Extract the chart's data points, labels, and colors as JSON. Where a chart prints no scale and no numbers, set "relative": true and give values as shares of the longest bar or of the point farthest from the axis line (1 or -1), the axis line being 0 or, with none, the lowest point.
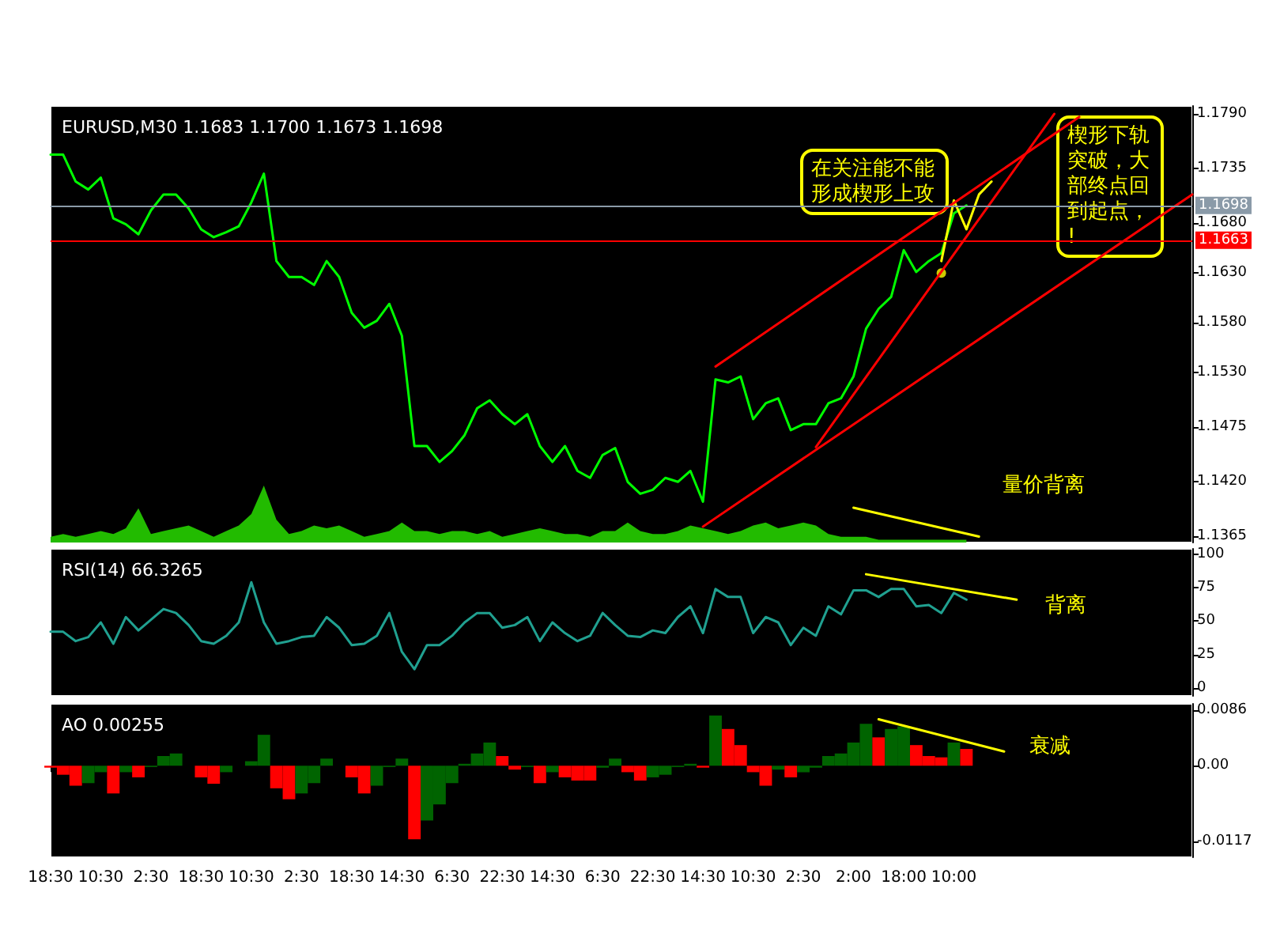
{
  "chart_data": [
    {
      "type": "line",
      "title": "EURUSD,M30 1.1683 1.1700 1.1673 1.1698",
      "tick_labels": "y",
      "categories": [
        "18:30",
        null,
        null,
        null,
        "10:30",
        null,
        null,
        null,
        "2:30",
        null,
        null,
        null,
        "18:30",
        null,
        null,
        null,
        "10:30",
        null,
        null,
        null,
        "2:30",
        null,
        null,
        null,
        "18:30",
        null,
        null,
        null,
        "14:30",
        null,
        null,
        null,
        "6:30",
        null,
        null,
        null,
        "22:30",
        null,
        null,
        null,
        "14:30",
        null,
        null,
        null,
        "6:30",
        null,
        null,
        null,
        "22:30",
        null,
        null,
        null,
        "14:30",
        null,
        null,
        null,
        "10:30",
        null,
        null,
        null,
        "2:30",
        null,
        null,
        null,
        "2:00",
        null,
        null,
        null,
        "18:00",
        null,
        null,
        null,
        "10:00",
        null,
        null,
        null,
        null,
        null,
        null,
        null,
        null,
        null,
        null,
        null,
        null,
        null,
        null,
        null,
        null,
        null,
        null,
        null
      ],
      "ylim": [
        1.1359,
        1.1798
      ],
      "yticks": [
        {
          "value": 1.179,
          "label": "1.1790"
        },
        1.1735,
        {
          "value": 1.168,
          "label": "1.1680"
        },
        {
          "value": 1.163,
          "label": "1.1630"
        },
        {
          "value": 1.158,
          "label": "1.1580"
        },
        {
          "value": 1.153,
          "label": "1.1530"
        },
        1.1475,
        {
          "value": 1.142,
          "label": "1.1420"
        },
        1.1365
      ],
      "ref_lines": [
        {
          "axis": "y",
          "value": 1.1698,
          "label": "1.1698",
          "color": "#8a9aa8"
        },
        {
          "axis": "y",
          "value": 1.1663,
          "label": "1.1663",
          "color": "#ff0000"
        }
      ],
      "annotations": [
        "在关注能不能形成楔形上攻",
        "楔形下轨突破，大部终点回到起点，!",
        "量价背离"
      ],
      "series": [
        {
          "color": "#00ff00",
          "values": [
            1.1749,
            1.1749,
            1.1722,
            1.1714,
            1.1726,
            1.1685,
            1.1679,
            1.1669,
            1.1693,
            1.1709,
            1.1709,
            1.1695,
            1.1674,
            1.1666,
            1.1671,
            1.1677,
            1.1701,
            1.173,
            1.1642,
            1.1626,
            1.1626,
            1.1618,
            1.1642,
            1.1626,
            1.159,
            1.1575,
            1.1582,
            1.1599,
            1.1567,
            1.1456,
            1.1456,
            1.144,
            1.1451,
            1.1467,
            1.1494,
            1.1502,
            1.1488,
            1.1478,
            1.1488,
            1.1456,
            1.144,
            1.1456,
            1.1431,
            1.1424,
            1.1447,
            1.1454,
            1.142,
            1.1408,
            1.1412,
            1.1424,
            1.142,
            1.1431,
            1.14,
            1.1523,
            1.152,
            1.1526,
            1.1483,
            1.1499,
            1.1504,
            1.1472,
            1.1478,
            1.1478,
            1.1499,
            1.1504,
            1.1526,
            1.1574,
            1.1594,
            1.1606,
            1.1653,
            1.1631,
            1.1642,
            1.165,
            1.169,
            1.1698,
            null,
            null,
            null,
            null,
            null,
            null,
            null,
            null,
            null,
            null,
            null,
            null,
            null,
            null,
            null,
            null,
            null,
            null
          ]
        },
        {
          "color": "#ffff00",
          "values": [
            null,
            null,
            null,
            null,
            null,
            null,
            null,
            null,
            null,
            null,
            null,
            null,
            null,
            null,
            null,
            null,
            null,
            null,
            null,
            null,
            null,
            null,
            null,
            null,
            null,
            null,
            null,
            null,
            null,
            null,
            null,
            null,
            null,
            null,
            null,
            null,
            null,
            null,
            null,
            null,
            null,
            null,
            null,
            null,
            null,
            null,
            null,
            null,
            null,
            null,
            null,
            null,
            null,
            null,
            null,
            null,
            null,
            null,
            null,
            null,
            null,
            null,
            null,
            null,
            null,
            null,
            null,
            null,
            null,
            null,
            null,
            1.1642,
            1.1703,
            1.1674,
            1.1709,
            1.1722,
            null,
            null,
            null,
            null,
            null,
            null,
            null,
            null,
            null,
            null,
            null,
            null,
            null,
            null,
            null,
            null
          ]
        },
        {
          "color": "#ff0000",
          "values": [
            null,
            null,
            null,
            null,
            null,
            null,
            null,
            null,
            null,
            null,
            null,
            null,
            null,
            null,
            null,
            null,
            null,
            null,
            null,
            null,
            null,
            null,
            null,
            null,
            null,
            null,
            null,
            null,
            null,
            null,
            null,
            null,
            null,
            null,
            null,
            null,
            null,
            null,
            null,
            null,
            null,
            null,
            null,
            null,
            null,
            null,
            null,
            null,
            null,
            null,
            null,
            null,
            null,
            1.1536,
            null,
            null,
            null,
            null,
            null,
            null,
            null,
            null,
            null,
            null,
            null,
            null,
            null,
            null,
            null,
            null,
            null,
            null,
            null,
            null,
            null,
            null,
            null,
            null,
            null,
            null,
            null,
            null,
            1.1787,
            null,
            null,
            null,
            null,
            null,
            null,
            null,
            null,
            null
          ]
        },
        {
          "color": "#ff0000",
          "values": [
            null,
            null,
            null,
            null,
            null,
            null,
            null,
            null,
            null,
            null,
            null,
            null,
            null,
            null,
            null,
            null,
            null,
            null,
            null,
            null,
            null,
            null,
            null,
            null,
            null,
            null,
            null,
            null,
            null,
            null,
            null,
            null,
            null,
            null,
            null,
            null,
            null,
            null,
            null,
            null,
            null,
            null,
            null,
            null,
            null,
            null,
            null,
            null,
            null,
            null,
            null,
            null,
            null,
            null,
            null,
            null,
            null,
            null,
            null,
            null,
            null,
            1.1455,
            null,
            null,
            null,
            null,
            null,
            null,
            null,
            null,
            null,
            null,
            null,
            null,
            null,
            null,
            null,
            null,
            null,
            null,
            1.179,
            null,
            null,
            null,
            null,
            null,
            null,
            null,
            null,
            null,
            null,
            null
          ]
        },
        {
          "color": "#ff0000",
          "values": [
            null,
            null,
            null,
            null,
            null,
            null,
            null,
            null,
            null,
            null,
            null,
            null,
            null,
            null,
            null,
            null,
            null,
            null,
            null,
            null,
            null,
            null,
            null,
            null,
            null,
            null,
            null,
            null,
            null,
            null,
            null,
            null,
            null,
            null,
            null,
            null,
            null,
            null,
            null,
            null,
            null,
            null,
            null,
            null,
            null,
            null,
            null,
            null,
            null,
            null,
            null,
            null,
            1.1375,
            null,
            null,
            null,
            null,
            null,
            null,
            null,
            null,
            null,
            null,
            null,
            null,
            null,
            null,
            null,
            null,
            null,
            null,
            null,
            null,
            null,
            null,
            null,
            null,
            null,
            null,
            null,
            null,
            null,
            null,
            null,
            null,
            null,
            null,
            null,
            null,
            null,
            null,
            1.1709
          ]
        },
        {
          "color": "#ffff00",
          "values": [
            null,
            null,
            null,
            null,
            null,
            null,
            null,
            null,
            null,
            null,
            null,
            null,
            null,
            null,
            null,
            null,
            null,
            null,
            null,
            null,
            null,
            null,
            null,
            null,
            null,
            null,
            null,
            null,
            null,
            null,
            null,
            null,
            null,
            null,
            null,
            null,
            null,
            null,
            null,
            null,
            null,
            null,
            null,
            null,
            null,
            null,
            null,
            null,
            null,
            null,
            null,
            null,
            null,
            null,
            null,
            null,
            null,
            null,
            null,
            null,
            null,
            null,
            null,
            null,
            1.1394,
            null,
            null,
            null,
            null,
            null,
            null,
            null,
            null,
            null,
            1.1365,
            null,
            null,
            null,
            null,
            null,
            null,
            null,
            null,
            null,
            null,
            null,
            null,
            null,
            null,
            null,
            null,
            null
          ]
        },
        {
          "type": "scatter",
          "marker": "circle",
          "color": "#ffff00",
          "values": [
            null,
            null,
            null,
            null,
            null,
            null,
            null,
            null,
            null,
            null,
            null,
            null,
            null,
            null,
            null,
            null,
            null,
            null,
            null,
            null,
            null,
            null,
            null,
            null,
            null,
            null,
            null,
            null,
            null,
            null,
            null,
            null,
            null,
            null,
            null,
            null,
            null,
            null,
            null,
            null,
            null,
            null,
            null,
            null,
            null,
            null,
            null,
            null,
            null,
            null,
            null,
            null,
            null,
            null,
            null,
            null,
            null,
            null,
            null,
            null,
            null,
            null,
            null,
            null,
            null,
            null,
            null,
            null,
            null,
            null,
            null,
            1.163,
            null,
            null,
            null,
            null,
            null,
            null,
            null,
            null,
            null,
            null,
            null,
            null,
            null,
            null,
            null,
            null,
            null,
            null,
            null,
            null
          ]
        }
      ]
    },
    {
      "type": "area",
      "relative": true,
      "tick_labels": false,
      "color": "#22bb00",
      "categories": [
        "18:30",
        null,
        null,
        null,
        "10:30",
        null,
        null,
        null,
        "2:30",
        null,
        null,
        null,
        "18:30",
        null,
        null,
        null,
        "10:30",
        null,
        null,
        null,
        "2:30",
        null,
        null,
        null,
        "18:30",
        null,
        null,
        null,
        "14:30",
        null,
        null,
        null,
        "6:30",
        null,
        null,
        null,
        "22:30",
        null,
        null,
        null,
        "14:30",
        null,
        null,
        null,
        "6:30",
        null,
        null,
        null,
        "22:30",
        null,
        null,
        null,
        "14:30",
        null,
        null,
        null,
        "10:30",
        null,
        null,
        null,
        "2:30",
        null,
        null,
        null,
        "2:00",
        null,
        null,
        null,
        "18:00",
        null,
        null,
        null,
        "10:00",
        null,
        null,
        null,
        null,
        null,
        null,
        null,
        null,
        null,
        null,
        null,
        null,
        null,
        null,
        null,
        null,
        null,
        null,
        null
      ],
      "values": [
        0.1,
        0.15,
        0.1,
        0.15,
        0.2,
        0.15,
        0.25,
        0.6,
        0.15,
        0.2,
        0.25,
        0.3,
        0.2,
        0.1,
        0.2,
        0.3,
        0.5,
        1,
        0.4,
        0.15,
        0.2,
        0.3,
        0.25,
        0.3,
        0.2,
        0.1,
        0.15,
        0.2,
        0.35,
        0.2,
        0.2,
        0.15,
        0.2,
        0.2,
        0.15,
        0.2,
        0.1,
        0.15,
        0.2,
        0.25,
        0.2,
        0.15,
        0.15,
        0.1,
        0.2,
        0.2,
        0.35,
        0.2,
        0.15,
        0.15,
        0.2,
        0.3,
        0.25,
        0.2,
        0.15,
        0.2,
        0.3,
        0.35,
        0.25,
        0.3,
        0.35,
        0.3,
        0.15,
        0.1,
        0.1,
        0.1,
        0.05,
        0.05,
        0.05,
        0.05,
        0.05,
        0.05,
        0.05,
        0.05,
        null,
        null,
        null,
        null,
        null,
        null,
        null,
        null,
        null,
        null,
        null,
        null,
        null,
        null,
        null,
        null,
        null,
        null
      ]
    },
    {
      "type": "line",
      "title": "RSI(14) 66.3265",
      "tick_labels": "y",
      "categories": [
        "18:30",
        null,
        null,
        null,
        "10:30",
        null,
        null,
        null,
        "2:30",
        null,
        null,
        null,
        "18:30",
        null,
        null,
        null,
        "10:30",
        null,
        null,
        null,
        "2:30",
        null,
        null,
        null,
        "18:30",
        null,
        null,
        null,
        "14:30",
        null,
        null,
        null,
        "6:30",
        null,
        null,
        null,
        "22:30",
        null,
        null,
        null,
        "14:30",
        null,
        null,
        null,
        "6:30",
        null,
        null,
        null,
        "22:30",
        null,
        null,
        null,
        "14:30",
        null,
        null,
        null,
        "10:30",
        null,
        null,
        null,
        "2:30",
        null,
        null,
        null,
        "2:00",
        null,
        null,
        null,
        "18:00",
        null,
        null,
        null,
        "10:00",
        null,
        null,
        null,
        null,
        null,
        null,
        null,
        null,
        null,
        null,
        null,
        null,
        null,
        null,
        null,
        null,
        null,
        null,
        null
      ],
      "ylim": [
        -6,
        104
      ],
      "yticks": [
        0,
        25,
        50,
        75,
        100
      ],
      "annotations": [
        "背离"
      ],
      "series": [
        {
          "color": "#20a090",
          "values": [
            42,
            42,
            35,
            38,
            49,
            33,
            53,
            43,
            51,
            59,
            56,
            47,
            35,
            33,
            39,
            49,
            79,
            49,
            33,
            35,
            38,
            39,
            53,
            45,
            32,
            33,
            39,
            56,
            27,
            14,
            32,
            32,
            39,
            49,
            56,
            56,
            45,
            47,
            53,
            35,
            49,
            41,
            35,
            39,
            56,
            47,
            39,
            38,
            43,
            41,
            53,
            61,
            41,
            74,
            68,
            68,
            41,
            53,
            49,
            32,
            45,
            39,
            61,
            55,
            73,
            73,
            68,
            74,
            74,
            61,
            62,
            56,
            71,
            66,
            null,
            null,
            null,
            null,
            null,
            null,
            null,
            null,
            null,
            null,
            null,
            null,
            null,
            null,
            null,
            null,
            null,
            null
          ]
        },
        {
          "color": "#ffff00",
          "values": [
            null,
            null,
            null,
            null,
            null,
            null,
            null,
            null,
            null,
            null,
            null,
            null,
            null,
            null,
            null,
            null,
            null,
            null,
            null,
            null,
            null,
            null,
            null,
            null,
            null,
            null,
            null,
            null,
            null,
            null,
            null,
            null,
            null,
            null,
            null,
            null,
            null,
            null,
            null,
            null,
            null,
            null,
            null,
            null,
            null,
            null,
            null,
            null,
            null,
            null,
            null,
            null,
            null,
            null,
            null,
            null,
            null,
            null,
            null,
            null,
            null,
            null,
            null,
            null,
            null,
            85,
            null,
            null,
            null,
            null,
            null,
            null,
            null,
            null,
            null,
            null,
            null,
            66,
            null,
            null,
            null,
            null,
            null,
            null,
            null,
            null,
            null,
            null,
            null,
            null,
            null,
            null
          ]
        }
      ]
    },
    {
      "type": "bar",
      "title": "AO 0.00255",
      "categories": [
        "18:30",
        null,
        null,
        null,
        "10:30",
        null,
        null,
        null,
        "2:30",
        null,
        null,
        null,
        "18:30",
        null,
        null,
        null,
        "10:30",
        null,
        null,
        null,
        "2:30",
        null,
        null,
        null,
        "18:30",
        null,
        null,
        null,
        "14:30",
        null,
        null,
        null,
        "6:30",
        null,
        null,
        null,
        "22:30",
        null,
        null,
        null,
        "14:30",
        null,
        null,
        null,
        "6:30",
        null,
        null,
        null,
        "22:30",
        null,
        null,
        null,
        "14:30",
        null,
        null,
        null,
        "10:30",
        null,
        null,
        null,
        "2:30",
        null,
        null,
        null,
        "2:00",
        null,
        null,
        null,
        "18:00",
        null,
        null,
        null,
        "10:00",
        null,
        null,
        null,
        null,
        null,
        null,
        null,
        null,
        null,
        null,
        null,
        null,
        null,
        null,
        null,
        null,
        null,
        null,
        null
      ],
      "ylim": [
        -0.0142,
        0.0096
      ],
      "yticks": [
        0.0086,
        {
          "value": 0,
          "label": "0.00"
        },
        -0.0117
      ],
      "annotations": [
        "衰减"
      ],
      "series": [
        {
          "values": [
            -0.0003,
            -0.0014,
            -0.0031,
            -0.0027,
            -0.001,
            -0.0043,
            -0.001,
            -0.0018,
            -0.0002,
            0.0015,
            0.0019,
            0,
            -0.0018,
            -0.0028,
            -0.001,
            0,
            0.0007,
            0.0048,
            -0.0035,
            -0.0052,
            -0.0043,
            -0.0027,
            0.0011,
            0,
            -0.0018,
            -0.0043,
            -0.0031,
            -0.0002,
            0.0011,
            -0.0114,
            -0.0085,
            -0.006,
            -0.0027,
            0.0003,
            0.0019,
            0.0036,
            0.0015,
            -0.0006,
            -0.0002,
            -0.0027,
            -0.001,
            -0.0018,
            -0.0023,
            -0.0023,
            -0.0003,
            0.0011,
            -0.001,
            -0.0023,
            -0.0018,
            -0.0014,
            -0.0002,
            0.0003,
            -0.0003,
            0.0078,
            0.0057,
            0.0032,
            -0.001,
            -0.0031,
            -0.0006,
            -0.0018,
            -0.001,
            -0.0003,
            0.0015,
            0.0019,
            0.0036,
            0.0065,
            0.0044,
            0.0057,
            0.0061,
            0.0032,
            0.0015,
            0.0013,
            0.0036,
            0.0026,
            null,
            null,
            null,
            null,
            null,
            null,
            null,
            null,
            null,
            null,
            null,
            null,
            null,
            null,
            null,
            null,
            null,
            null
          ],
          "colors": [
            "#ff0000",
            "#ff0000",
            "#ff0000",
            "#006400",
            "#006400",
            "#ff0000",
            "#006400",
            "#ff0000",
            "#006400",
            "#006400",
            "#006400",
            "#ff0000",
            "#ff0000",
            "#ff0000",
            "#006400",
            "#006400",
            "#006400",
            "#006400",
            "#ff0000",
            "#ff0000",
            "#006400",
            "#006400",
            "#006400",
            "#ff0000",
            "#ff0000",
            "#ff0000",
            "#006400",
            "#006400",
            "#006400",
            "#ff0000",
            "#006400",
            "#006400",
            "#006400",
            "#006400",
            "#006400",
            "#006400",
            "#ff0000",
            "#ff0000",
            "#006400",
            "#ff0000",
            "#006400",
            "#ff0000",
            "#ff0000",
            "#ff0000",
            "#006400",
            "#006400",
            "#ff0000",
            "#ff0000",
            "#006400",
            "#006400",
            "#006400",
            "#006400",
            "#ff0000",
            "#006400",
            "#ff0000",
            "#ff0000",
            "#ff0000",
            "#ff0000",
            "#006400",
            "#ff0000",
            "#006400",
            "#006400",
            "#006400",
            "#006400",
            "#006400",
            "#006400",
            "#ff0000",
            "#006400",
            "#006400",
            "#ff0000",
            "#ff0000",
            "#ff0000",
            "#006400",
            "#ff0000",
            null,
            null,
            null,
            null,
            null,
            null,
            null,
            null,
            null,
            null,
            null,
            null,
            null,
            null,
            null,
            null,
            null,
            null
          ]
        },
        {
          "type": "line",
          "color": "#ffff00",
          "values": [
            null,
            null,
            null,
            null,
            null,
            null,
            null,
            null,
            null,
            null,
            null,
            null,
            null,
            null,
            null,
            null,
            null,
            null,
            null,
            null,
            null,
            null,
            null,
            null,
            null,
            null,
            null,
            null,
            null,
            null,
            null,
            null,
            null,
            null,
            null,
            null,
            null,
            null,
            null,
            null,
            null,
            null,
            null,
            null,
            null,
            null,
            null,
            null,
            null,
            null,
            null,
            null,
            null,
            null,
            null,
            null,
            null,
            null,
            null,
            null,
            null,
            null,
            null,
            null,
            null,
            null,
            0.0072,
            null,
            null,
            null,
            null,
            null,
            null,
            null,
            null,
            null,
            0.0022,
            null,
            null,
            null,
            null,
            null,
            null,
            null,
            null,
            null,
            null,
            null,
            null,
            null,
            null,
            null
          ]
        }
      ]
    }
  ]
}
